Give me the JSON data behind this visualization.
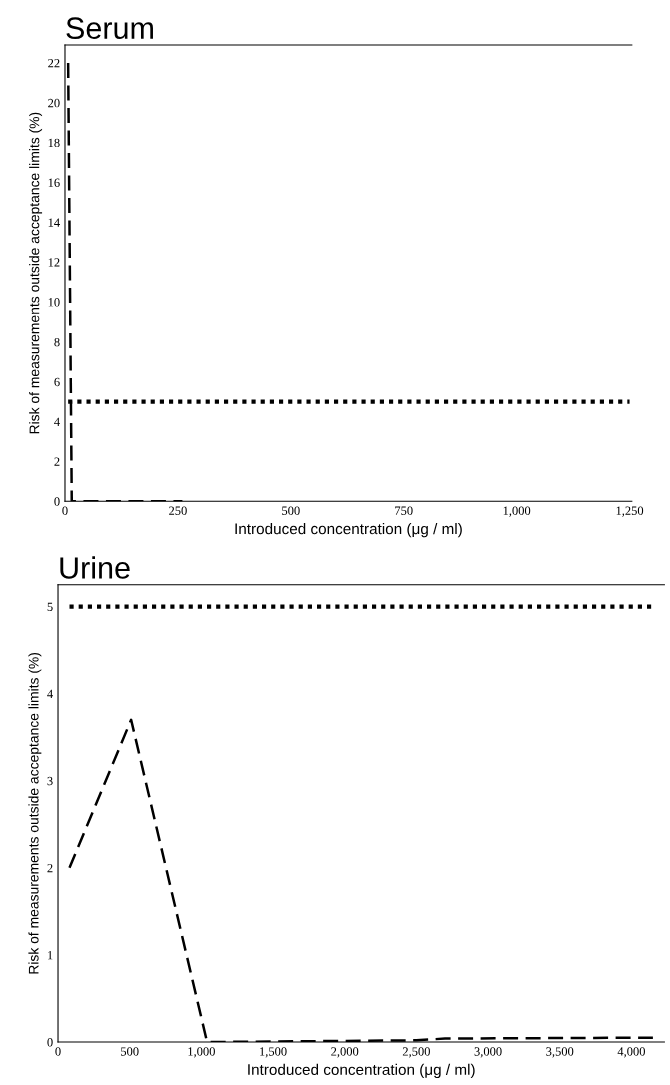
{
  "chart_data": [
    {
      "type": "line",
      "title": "Serum",
      "xlabel": "Introduced concentration (μg / ml)",
      "ylabel": "Risk of measurements outside acceptance limits (%)",
      "xlim": [
        0,
        1255
      ],
      "ylim": [
        0,
        22.9
      ],
      "xticks": [
        0,
        250,
        500,
        750,
        {
          "value": 1000,
          "label": "1,000"
        },
        {
          "value": 1250,
          "label": "1,250"
        }
      ],
      "yticks": [
        0,
        2,
        4,
        6,
        8,
        10,
        12,
        14,
        16,
        18,
        20,
        22
      ],
      "grid": false,
      "legend": false,
      "series": [
        {
          "color": "#000000",
          "line_style": "dashed",
          "x": [
            7,
            15,
            65,
            260
          ],
          "values": [
            22,
            0,
            0,
            0
          ]
        },
        {
          "color": "#000000",
          "line_style": "dotted",
          "x": [
            7,
            1250
          ],
          "values": [
            5,
            5
          ]
        }
      ]
    },
    {
      "type": "line",
      "title": "Urine",
      "xlabel": "Introduced concentration (μg / ml)",
      "ylabel": "Risk of measurements outside acceptance limits (%)",
      "xlim": [
        0,
        4230
      ],
      "ylim": [
        0,
        5.25
      ],
      "xticks": [
        0,
        500,
        {
          "value": 1000,
          "label": "1,000"
        },
        {
          "value": 1500,
          "label": "1,500"
        },
        {
          "value": 2000,
          "label": "2,000"
        },
        {
          "value": 2500,
          "label": "2,500"
        },
        {
          "value": 3000,
          "label": "3,000"
        },
        {
          "value": 3500,
          "label": "3,500"
        },
        {
          "value": 4000,
          "label": "4,000"
        }
      ],
      "yticks": [
        0,
        1,
        2,
        3,
        4,
        5
      ],
      "grid": false,
      "legend": false,
      "series": [
        {
          "color": "#000000",
          "line_style": "dashed",
          "x": [
            80,
            510,
            1040,
            2500,
            2700,
            4150
          ],
          "values": [
            2.0,
            3.7,
            0,
            0.02,
            0.04,
            0.05
          ]
        },
        {
          "color": "#000000",
          "line_style": "dotted",
          "x": [
            80,
            4150
          ],
          "values": [
            5,
            5
          ]
        }
      ]
    }
  ]
}
